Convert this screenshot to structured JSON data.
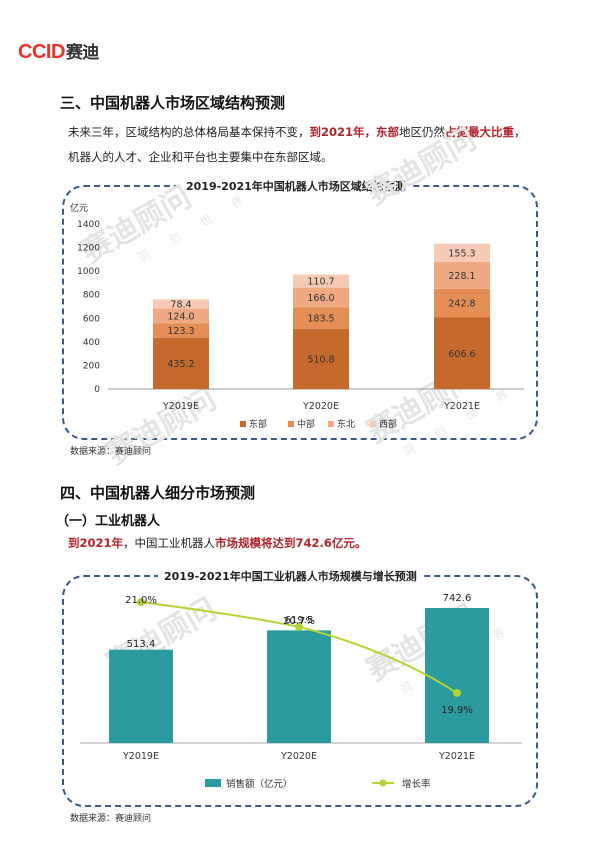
{
  "logo": {
    "ccid": "CCID",
    "name": "赛迪"
  },
  "watermark": {
    "big": "赛迪顾问",
    "small": "洞 创 世 界"
  },
  "section3": {
    "heading": "三、中国机器人市场区域结构预测",
    "para_p1": "未来三年，区域结构的总体格局基本保持不变，",
    "para_red1": "到2021年，东部",
    "para_p2": "地区仍然",
    "para_red2": "占据最大比重",
    "para_p3": "，",
    "para_line2": "机器人的人才、企业和平台也主要集中在东部区域。"
  },
  "section4": {
    "heading": "四、中国机器人细分市场预测",
    "sub": "（一）工业机器人",
    "line_red1": "到2021年",
    "line_p1": "，中国工业机器人",
    "line_red2": "市场规模将达到742.6亿元。"
  },
  "source1": "数据来源：赛迪顾问",
  "source2": "数据来源：赛迪顾问",
  "chart_data": [
    {
      "type": "bar",
      "stacked": true,
      "title": "2019-2021年中国机器人市场区域结构预测",
      "ylabel": "亿元",
      "ylim": [
        0,
        1400
      ],
      "yticks": [
        "0",
        "200",
        "400",
        "600",
        "800",
        "1000",
        "1200",
        "1400"
      ],
      "categories": [
        "Y2019E",
        "Y2020E",
        "Y2021E"
      ],
      "series": [
        {
          "name": "东部",
          "values": [
            435.2,
            510.8,
            606.6
          ],
          "color": "#c6692c"
        },
        {
          "name": "中部",
          "values": [
            123.3,
            183.5,
            242.8
          ],
          "color": "#e48e55"
        },
        {
          "name": "东北",
          "values": [
            124.0,
            166.0,
            228.1
          ],
          "color": "#efaa83"
        },
        {
          "name": "西部",
          "values": [
            78.4,
            110.7,
            155.3
          ],
          "color": "#f6cbb5"
        }
      ],
      "labels": [
        [
          "435.2",
          "510.8",
          "606.6"
        ],
        [
          "123.3",
          "183.5",
          "242.8"
        ],
        [
          "124.0",
          "166.0",
          "228.1"
        ],
        [
          "78.4",
          "110.7",
          "155.3"
        ]
      ],
      "legend_position": "bottom",
      "grid": false
    },
    {
      "type": "bar",
      "title": "2019-2021年中国工业机器人市场规模与增长预测",
      "categories": [
        "Y2019E",
        "Y2020E",
        "Y2021E"
      ],
      "series": [
        {
          "name": "销售额（亿元）",
          "type": "bar",
          "values": [
            513.4,
            619.5,
            742.6
          ],
          "labels": [
            "513.4",
            "619.5",
            "742.6"
          ],
          "color": "#2b9b9f"
        },
        {
          "name": "增长率",
          "type": "line",
          "values": [
            21.0,
            20.7,
            19.9
          ],
          "labels": [
            "21.0%",
            "20.7%",
            "19.9%"
          ],
          "color": "#b3d433"
        }
      ],
      "legend_position": "bottom",
      "grid": false
    }
  ]
}
